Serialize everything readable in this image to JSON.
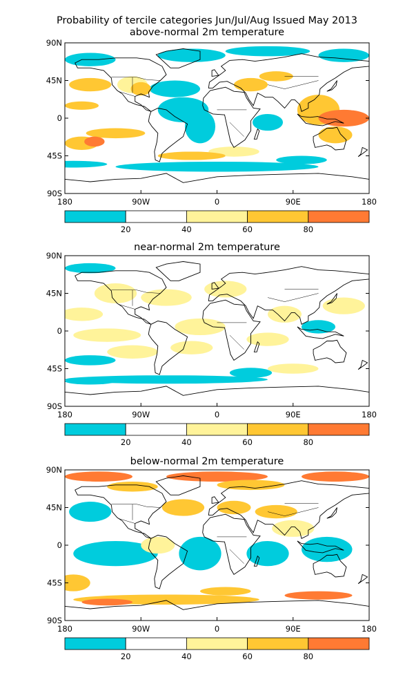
{
  "title": {
    "line1": "Probability of tercile categories Jun/Jul/Aug Issued May 2013",
    "line2": "above-normal 2m temperature"
  },
  "colors": {
    "cyan": "#00ccdd",
    "white": "#ffffff",
    "pale_yellow": "#fff39a",
    "light_orange": "#ffc733",
    "dark_orange": "#ff7a33",
    "outline": "#000000"
  },
  "legend": {
    "tick_labels": [
      "20",
      "40",
      "60",
      "80"
    ]
  },
  "axes": {
    "lat_labels": [
      "90N",
      "45N",
      "0",
      "45S",
      "90S"
    ],
    "lon_labels": [
      "180",
      "90W",
      "0",
      "90E",
      "180"
    ]
  },
  "panels": [
    {
      "id": "above",
      "title": "",
      "dominant": "above"
    },
    {
      "id": "near",
      "title": "near-normal 2m temperature",
      "dominant": "near"
    },
    {
      "id": "below",
      "title": "below-normal 2m temperature",
      "dominant": "below"
    }
  ]
}
